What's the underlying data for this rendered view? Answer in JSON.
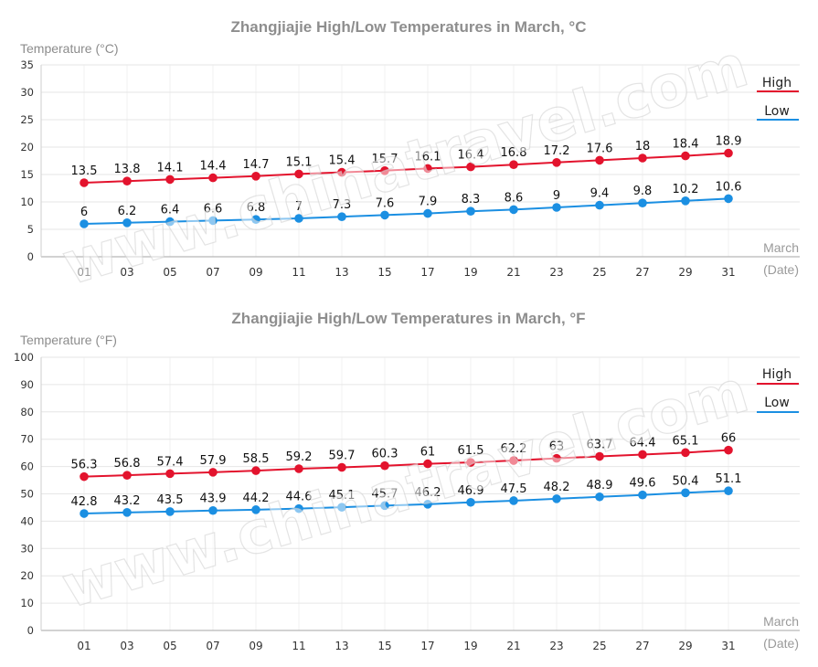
{
  "watermark": "www.chinatravel.com",
  "chart_data": [
    {
      "type": "line",
      "title": "Zhangjiajie High/Low Temperatures in March, °C",
      "ylabel": "Temperature (°C)",
      "xlabel": "March",
      "xunit": "(Date)",
      "categories": [
        "01",
        "03",
        "05",
        "07",
        "09",
        "11",
        "13",
        "15",
        "17",
        "19",
        "21",
        "23",
        "25",
        "27",
        "29",
        "31"
      ],
      "ylim": [
        0,
        35
      ],
      "yticks": [
        0,
        5,
        10,
        15,
        20,
        25,
        30,
        35
      ],
      "grid": true,
      "legend": "top-right",
      "series": [
        {
          "name": "High",
          "color": "#e3132d",
          "values": [
            13.5,
            13.8,
            14.1,
            14.4,
            14.7,
            15.1,
            15.4,
            15.7,
            16.1,
            16.4,
            16.8,
            17.2,
            17.6,
            18,
            18.4,
            18.9
          ]
        },
        {
          "name": "Low",
          "color": "#1b8fe2",
          "values": [
            6,
            6.2,
            6.4,
            6.6,
            6.8,
            7,
            7.3,
            7.6,
            7.9,
            8.3,
            8.6,
            9,
            9.4,
            9.8,
            10.2,
            10.6
          ]
        }
      ]
    },
    {
      "type": "line",
      "title": "Zhangjiajie High/Low Temperatures in March, °F",
      "ylabel": "Temperature (°F)",
      "xlabel": "March",
      "xunit": "(Date)",
      "categories": [
        "01",
        "03",
        "05",
        "07",
        "09",
        "11",
        "13",
        "15",
        "17",
        "19",
        "21",
        "23",
        "25",
        "27",
        "29",
        "31"
      ],
      "ylim": [
        0,
        100
      ],
      "yticks": [
        0,
        10,
        20,
        30,
        40,
        50,
        60,
        70,
        80,
        90,
        100
      ],
      "grid": true,
      "legend": "top-right",
      "series": [
        {
          "name": "High",
          "color": "#e3132d",
          "values": [
            56.3,
            56.8,
            57.4,
            57.9,
            58.5,
            59.2,
            59.7,
            60.3,
            61,
            61.5,
            62.2,
            63,
            63.7,
            64.4,
            65.1,
            66
          ]
        },
        {
          "name": "Low",
          "color": "#1b8fe2",
          "values": [
            42.8,
            43.2,
            43.5,
            43.9,
            44.2,
            44.6,
            45.1,
            45.7,
            46.2,
            46.9,
            47.5,
            48.2,
            48.9,
            49.6,
            50.4,
            51.1
          ]
        }
      ]
    }
  ]
}
